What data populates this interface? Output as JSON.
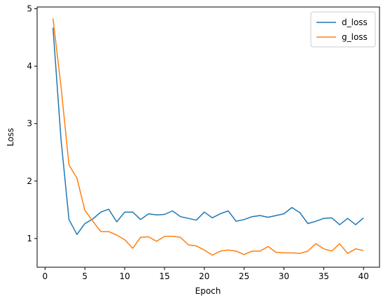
{
  "chart_data": {
    "type": "line",
    "title": "",
    "xlabel": "Epoch",
    "ylabel": "Loss",
    "xlim": [
      -1,
      42
    ],
    "ylim": [
      0.5,
      5.03
    ],
    "xticks": [
      0,
      5,
      10,
      15,
      20,
      25,
      30,
      35,
      40
    ],
    "yticks": [
      1,
      2,
      3,
      4,
      5
    ],
    "grid": false,
    "legend": "top-right",
    "x": [
      1,
      2,
      3,
      4,
      5,
      6,
      7,
      8,
      9,
      10,
      11,
      12,
      13,
      14,
      15,
      16,
      17,
      18,
      19,
      20,
      21,
      22,
      23,
      24,
      25,
      26,
      27,
      28,
      29,
      30,
      31,
      32,
      33,
      34,
      35,
      36,
      37,
      38,
      39,
      40
    ],
    "series": [
      {
        "name": "d_loss",
        "color": "#1f77b4",
        "values": [
          4.67,
          2.73,
          1.33,
          1.07,
          1.26,
          1.34,
          1.46,
          1.51,
          1.29,
          1.46,
          1.46,
          1.33,
          1.43,
          1.41,
          1.42,
          1.48,
          1.38,
          1.35,
          1.32,
          1.46,
          1.36,
          1.43,
          1.48,
          1.3,
          1.33,
          1.38,
          1.4,
          1.37,
          1.4,
          1.43,
          1.54,
          1.45,
          1.26,
          1.3,
          1.35,
          1.36,
          1.24,
          1.35,
          1.24,
          1.36
        ]
      },
      {
        "name": "g_loss",
        "color": "#ff7f0e",
        "values": [
          4.83,
          3.65,
          2.28,
          2.05,
          1.49,
          1.3,
          1.12,
          1.12,
          1.06,
          0.98,
          0.83,
          1.02,
          1.03,
          0.95,
          1.04,
          1.04,
          1.02,
          0.89,
          0.87,
          0.8,
          0.71,
          0.78,
          0.8,
          0.78,
          0.72,
          0.78,
          0.78,
          0.86,
          0.76,
          0.75,
          0.75,
          0.74,
          0.78,
          0.91,
          0.82,
          0.78,
          0.91,
          0.74,
          0.82,
          0.79
        ]
      }
    ]
  }
}
